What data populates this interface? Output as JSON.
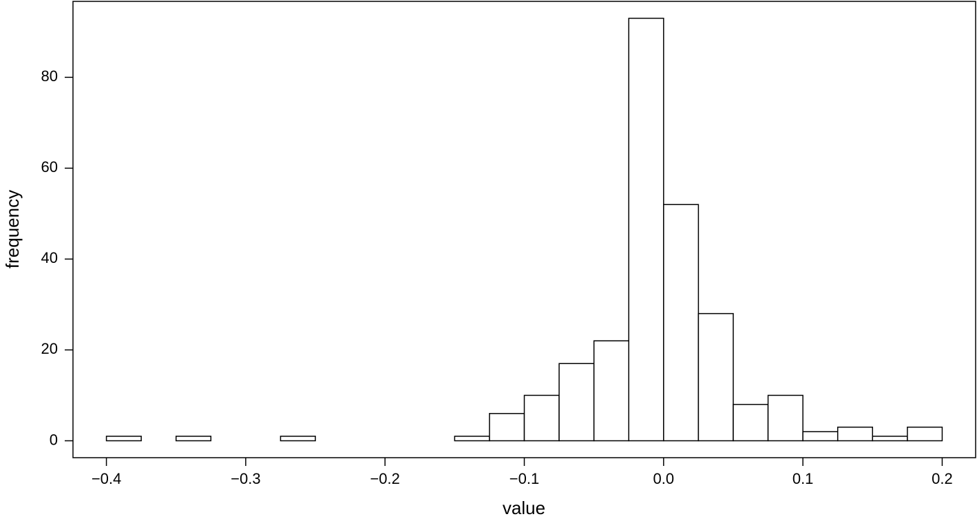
{
  "chart_data": {
    "type": "histogram",
    "x_label": "value",
    "y_label": "frequency",
    "bins": [
      -0.4,
      -0.375,
      -0.35,
      -0.325,
      -0.3,
      -0.275,
      -0.25,
      -0.225,
      -0.2,
      -0.175,
      -0.15,
      -0.125,
      -0.1,
      -0.075,
      -0.05,
      -0.025,
      0,
      0.025,
      0.05,
      0.075,
      0.1,
      0.125,
      0.15,
      0.175,
      0.2
    ],
    "counts": [
      1,
      0,
      1,
      0,
      0,
      1,
      0,
      0,
      0,
      0,
      1,
      6,
      10,
      17,
      22,
      93,
      52,
      28,
      8,
      10,
      2,
      3,
      1,
      3
    ],
    "color": "#ffffff",
    "xlim": [
      -0.424,
      0.224
    ],
    "ylim": [
      -3.72,
      96.72
    ],
    "xticks": [
      {
        "value": -0.4,
        "label": "−0.4"
      },
      {
        "value": -0.3,
        "label": "−0.3"
      },
      {
        "value": -0.2,
        "label": "−0.2"
      },
      {
        "value": -0.1,
        "label": "−0.1"
      },
      {
        "value": 0,
        "label": "0.0"
      },
      0.1,
      0.2
    ],
    "yticks": [
      0,
      20,
      40,
      60,
      80
    ]
  }
}
